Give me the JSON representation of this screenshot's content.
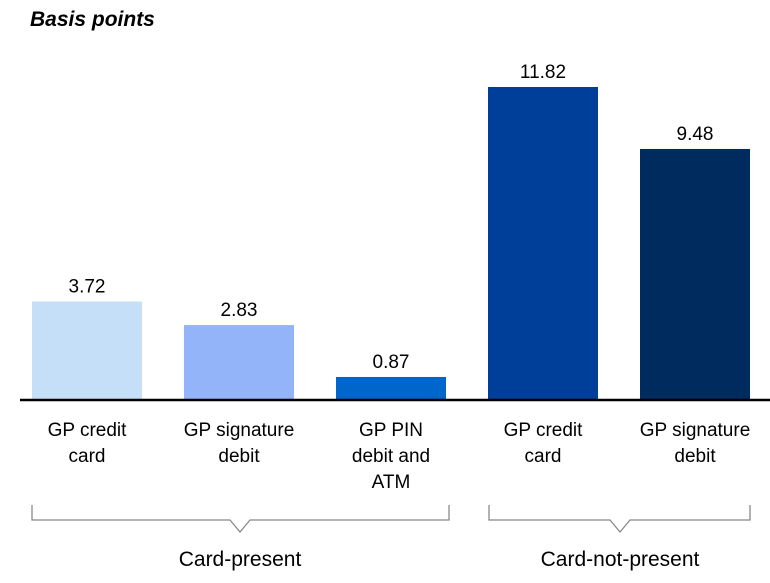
{
  "chart_data": {
    "type": "bar",
    "title": "Basis points",
    "categories": [
      "GP credit card",
      "GP signature debit",
      "GP PIN debit and ATM",
      "GP credit card",
      "GP signature debit"
    ],
    "values": [
      3.72,
      2.83,
      0.87,
      11.82,
      9.48
    ],
    "colors": [
      "#c5dff8",
      "#94b4fa",
      "#0066cc",
      "#003f99",
      "#002b5e"
    ],
    "groups": [
      "Card-present",
      "Card-not-present"
    ]
  }
}
